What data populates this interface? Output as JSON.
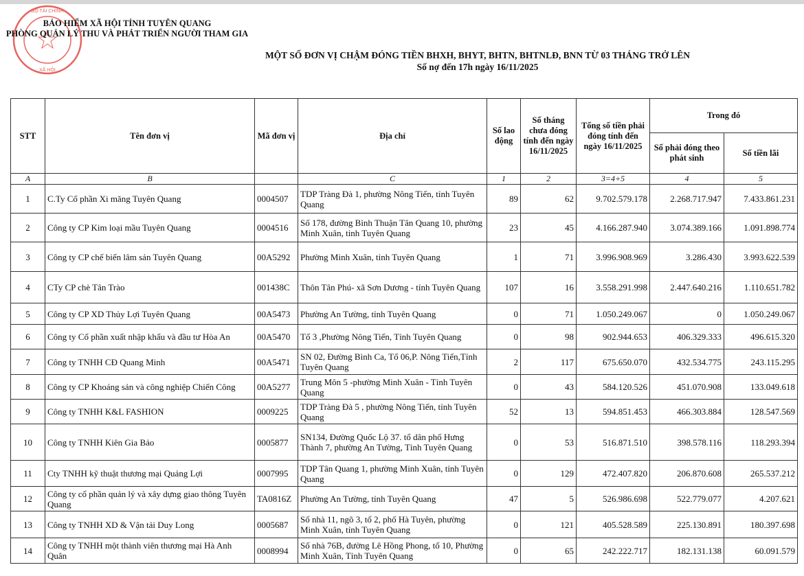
{
  "header": {
    "org_line1": "BẢO HIỂM XÃ HỘI TỈNH TUYÊN QUANG",
    "org_line2": "PHÒNG QUẢN LÝ THU VÀ PHÁT TRIỂN NGƯỜI THAM GIA",
    "stamp_text": "BẢO HIỂM XÃ HỘI TỈNH TUYÊN QUANG - BỘ TÀI CHÍNH - BẢO HIỂM XÃ HỘI VIỆT NAM",
    "title": "MỘT SỐ  ĐƠN VỊ CHẬM ĐÓNG TIỀN BHXH, BHYT, BHTN, BHTNLĐ, BNN TỪ 03 THÁNG TRỞ LÊN",
    "subtitle": "Số nợ đến 17h ngày 16/11/2025",
    "stamp_color": "#e0302a"
  },
  "table": {
    "headers": {
      "stt": "STT",
      "name": "Tên đơn vị",
      "code": "Mã đơn vị",
      "address": "Địa chỉ",
      "workers": "Số lao động",
      "months": "Số tháng chưa đóng tính đến ngày 16/11/2025",
      "total": "Tổng số tiền phải đóng tính đến ngày 16/11/2025",
      "group": "Trong đó",
      "principal": "Số phải đóng theo phát sinh",
      "interest": "Số tiền lãi"
    },
    "index_row": [
      "A",
      "B",
      "",
      "C",
      "1",
      "2",
      "3=4+5",
      "4",
      "5"
    ],
    "rows": [
      {
        "stt": "1",
        "name": "C.Ty Cổ phần Xi măng Tuyên Quang",
        "code": "0004507",
        "address": "TDP Tràng Đà 1, phường Nông Tiến, tỉnh Tuyên Quang",
        "workers": "89",
        "months": "62",
        "total": "9.702.579.178",
        "principal": "2.268.717.947",
        "interest": "7.433.861.231"
      },
      {
        "stt": "2",
        "name": "Công ty CP Kim loại mầu Tuyên Quang",
        "code": "0004516",
        "address": "Số 178, đường Bình Thuận Tân Quang 10, phường Minh Xuân, tỉnh Tuyên Quang",
        "workers": "23",
        "months": "45",
        "total": "4.166.287.940",
        "principal": "3.074.389.166",
        "interest": "1.091.898.774"
      },
      {
        "stt": "3",
        "name": "Công ty CP chế biến lâm sản Tuyên Quang",
        "code": "00A5292",
        "address": "Phường Minh Xuân, tỉnh Tuyên Quang",
        "workers": "1",
        "months": "71",
        "total": "3.996.908.969",
        "principal": "3.286.430",
        "interest": "3.993.622.539"
      },
      {
        "stt": "4",
        "name": "CTy CP chè Tân Trào",
        "code": "001438C",
        "address": "Thôn Tân Phú- xã Sơn Dương - tỉnh Tuyên Quang",
        "workers": "107",
        "months": "16",
        "total": "3.558.291.998",
        "principal": "2.447.640.216",
        "interest": "1.110.651.782"
      },
      {
        "stt": "5",
        "name": "Công ty CP XD Thủy Lợi Tuyên Quang",
        "code": "00A5473",
        "address": "Phường An Tường, tỉnh Tuyên Quang",
        "workers": "0",
        "months": "71",
        "total": "1.050.249.067",
        "principal": "0",
        "interest": "1.050.249.067"
      },
      {
        "stt": "6",
        "name": "Công ty Cổ phần xuất nhập khẩu và đầu tư Hòa An",
        "code": "00A5470",
        "address": "Tổ 3 ,Phường Nông Tiến, Tỉnh Tuyên Quang",
        "workers": "0",
        "months": "98",
        "total": "902.944.653",
        "principal": "406.329.333",
        "interest": "496.615.320"
      },
      {
        "stt": "7",
        "name": "Công ty TNHH CĐ Quang Minh",
        "code": "00A5471",
        "address": "SN 02, Đường Bình Ca, Tổ 06,P. Nông Tiến,Tỉnh Tuyên Quang",
        "workers": "2",
        "months": "117",
        "total": "675.650.070",
        "principal": "432.534.775",
        "interest": "243.115.295"
      },
      {
        "stt": "8",
        "name": "Công ty CP Khoáng sản và công nghiệp Chiến Công",
        "code": "00A5277",
        "address": " Trung Môn 5 -phường Minh Xuân - Tỉnh Tuyên Quang",
        "workers": "0",
        "months": "43",
        "total": "584.120.526",
        "principal": "451.070.908",
        "interest": "133.049.618"
      },
      {
        "stt": "9",
        "name": "Công ty TNHH K&L FASHION",
        "code": "0009225",
        "address": "TDP Tràng Đà 5 , phường Nông Tiến, tỉnh Tuyên Quang",
        "workers": "52",
        "months": "13",
        "total": "594.851.453",
        "principal": "466.303.884",
        "interest": "128.547.569"
      },
      {
        "stt": "10",
        "name": "Công ty TNHH Kiên Gia Bảo",
        "code": "0005877",
        "address": "SN134, Đường Quốc Lộ 37. tổ dân phố Hưng Thành 7, phường An Tường, Tỉnh Tuyên Quang",
        "workers": "0",
        "months": "53",
        "total": "516.871.510",
        "principal": "398.578.116",
        "interest": "118.293.394"
      },
      {
        "stt": "11",
        "name": "Cty TNHH kỹ thuật thương mại Quảng Lợi",
        "code": "0007995",
        "address": "TDP Tân Quang 1, phường Minh Xuân, tỉnh Tuyên Quang",
        "workers": "0",
        "months": "129",
        "total": "472.407.820",
        "principal": "206.870.608",
        "interest": "265.537.212"
      },
      {
        "stt": "12",
        "name": "Công ty cổ phần quản lý và xây dựng giao thông Tuyên Quang",
        "code": "TA0816Z",
        "address": "Phường An Tường, tỉnh Tuyên Quang",
        "workers": "47",
        "months": "5",
        "total": "526.986.698",
        "principal": "522.779.077",
        "interest": "4.207.621"
      },
      {
        "stt": "13",
        "name": "Công ty TNHH XD & Vận tải Duy Long",
        "code": "0005687",
        "address": "Số nhà 11, ngõ 3, tổ 2,  phố Hà Tuyên, phường Minh Xuân, tỉnh Tuyên Quang",
        "workers": "0",
        "months": "121",
        "total": "405.528.589",
        "principal": "225.130.891",
        "interest": "180.397.698"
      },
      {
        "stt": "14",
        "name": "Công ty TNHH một thành viên thương mại Hà Anh Quân",
        "code": "0008994",
        "address": "Số nhà 76B, đường Lê Hồng Phong, tổ 10, Phường Minh Xuân, Tỉnh Tuyên Quang",
        "workers": "0",
        "months": "65",
        "total": "242.222.717",
        "principal": "182.131.138",
        "interest": "60.091.579"
      }
    ]
  }
}
